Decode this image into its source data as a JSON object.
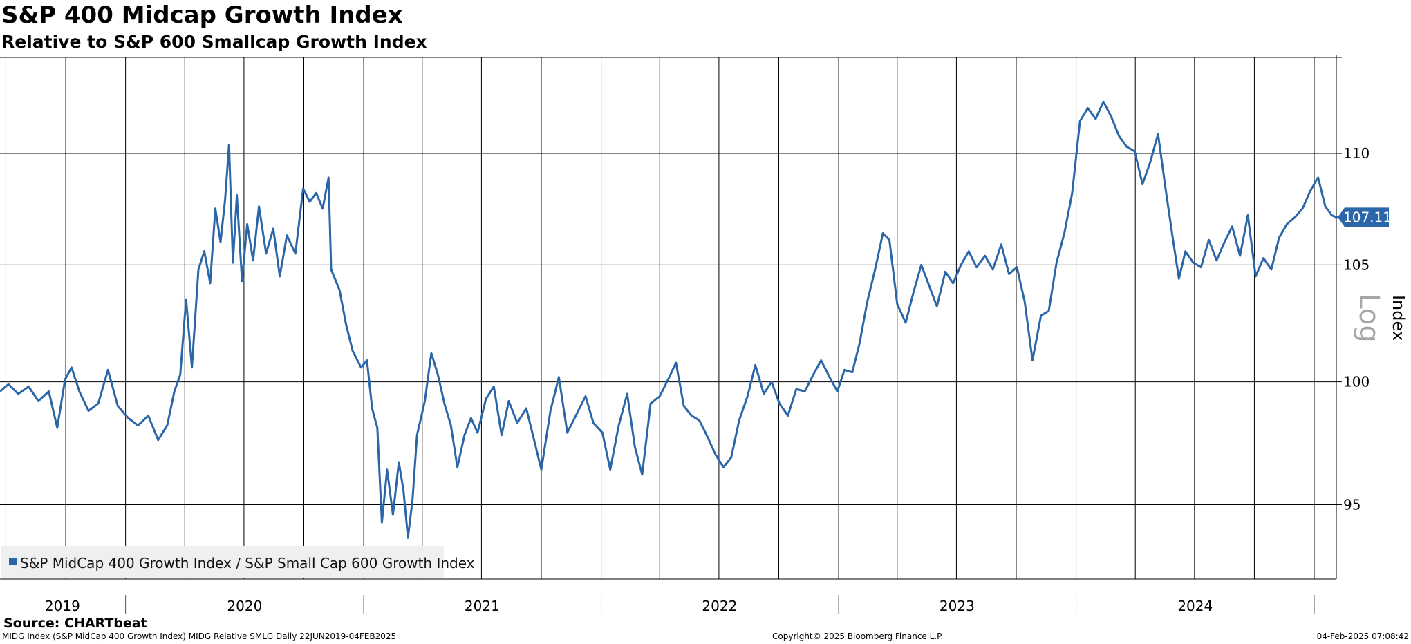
{
  "header": {
    "title": "S&P 400 Midcap Growth Index",
    "subtitle": "Relative to S&P 600 Smallcap Growth Index"
  },
  "footer": {
    "source": "Source: CHARTbeat",
    "left": "MIDG Index (S&P MidCap 400 Growth Index) MIDG Relative SMLG  Daily 22JUN2019-04FEB2025",
    "center": "Copyright© 2025 Bloomberg Finance L.P.",
    "right": "04-Feb-2025 07:08:42"
  },
  "colors": {
    "series": "#2a66a8",
    "grid": "#000000",
    "legend_bg": "#efefef",
    "scale_label": "#a6a6a6"
  },
  "chart_data": {
    "type": "line",
    "title": "S&P 400 Midcap Growth Index",
    "subtitle": "Relative to S&P 600 Smallcap Growth Index",
    "ylabel": "Index",
    "yscale": "log",
    "yscale_label": "Log",
    "y_ticks": [
      95,
      100,
      105,
      110
    ],
    "ylim": [
      92.1,
      114.5
    ],
    "xlim": [
      "2019-06-22",
      "2025-02-04"
    ],
    "x_labels": [
      "2019",
      "2020",
      "2021",
      "2022",
      "2023",
      "2024"
    ],
    "grid": true,
    "legend_position": "bottom-left",
    "last_value": 107.11,
    "last_value_label": "107.11",
    "series": [
      {
        "name": "S&P MidCap 400 Growth Index / S&P Small Cap 600 Growth Index",
        "color": "#2a66a8",
        "points": [
          [
            "2019-06-22",
            99.6
          ],
          [
            "2019-07-05",
            99.9
          ],
          [
            "2019-07-20",
            99.5
          ],
          [
            "2019-08-05",
            99.8
          ],
          [
            "2019-08-20",
            99.2
          ],
          [
            "2019-09-05",
            99.6
          ],
          [
            "2019-09-18",
            98.1
          ],
          [
            "2019-09-30",
            100.1
          ],
          [
            "2019-10-10",
            100.6
          ],
          [
            "2019-10-22",
            99.6
          ],
          [
            "2019-11-05",
            98.8
          ],
          [
            "2019-11-20",
            99.1
          ],
          [
            "2019-12-05",
            100.5
          ],
          [
            "2019-12-20",
            99.0
          ],
          [
            "2020-01-05",
            98.5
          ],
          [
            "2020-01-20",
            98.2
          ],
          [
            "2020-02-05",
            98.6
          ],
          [
            "2020-02-20",
            97.6
          ],
          [
            "2020-03-05",
            98.2
          ],
          [
            "2020-03-16",
            99.6
          ],
          [
            "2020-03-25",
            100.3
          ],
          [
            "2020-04-03",
            103.5
          ],
          [
            "2020-04-12",
            100.6
          ],
          [
            "2020-04-22",
            104.8
          ],
          [
            "2020-05-01",
            105.6
          ],
          [
            "2020-05-10",
            104.2
          ],
          [
            "2020-05-18",
            107.5
          ],
          [
            "2020-05-26",
            106.0
          ],
          [
            "2020-06-02",
            107.9
          ],
          [
            "2020-06-08",
            110.4
          ],
          [
            "2020-06-14",
            105.1
          ],
          [
            "2020-06-20",
            108.1
          ],
          [
            "2020-06-28",
            104.3
          ],
          [
            "2020-07-06",
            106.8
          ],
          [
            "2020-07-15",
            105.2
          ],
          [
            "2020-07-24",
            107.6
          ],
          [
            "2020-08-04",
            105.5
          ],
          [
            "2020-08-15",
            106.6
          ],
          [
            "2020-08-25",
            104.5
          ],
          [
            "2020-09-05",
            106.3
          ],
          [
            "2020-09-18",
            105.5
          ],
          [
            "2020-09-30",
            108.4
          ],
          [
            "2020-10-10",
            107.8
          ],
          [
            "2020-10-20",
            108.2
          ],
          [
            "2020-10-30",
            107.5
          ],
          [
            "2020-11-08",
            108.9
          ],
          [
            "2020-11-12",
            104.8
          ],
          [
            "2020-11-25",
            103.9
          ],
          [
            "2020-12-05",
            102.4
          ],
          [
            "2020-12-15",
            101.3
          ],
          [
            "2020-12-28",
            100.6
          ],
          [
            "2021-01-06",
            100.9
          ],
          [
            "2021-01-14",
            98.9
          ],
          [
            "2021-01-22",
            98.1
          ],
          [
            "2021-01-29",
            94.3
          ],
          [
            "2021-02-06",
            96.4
          ],
          [
            "2021-02-15",
            94.6
          ],
          [
            "2021-02-24",
            96.7
          ],
          [
            "2021-03-03",
            95.6
          ],
          [
            "2021-03-10",
            93.7
          ],
          [
            "2021-03-17",
            95.2
          ],
          [
            "2021-03-24",
            97.8
          ],
          [
            "2021-04-05",
            99.2
          ],
          [
            "2021-04-15",
            101.2
          ],
          [
            "2021-04-25",
            100.3
          ],
          [
            "2021-05-05",
            99.1
          ],
          [
            "2021-05-15",
            98.2
          ],
          [
            "2021-05-25",
            96.5
          ],
          [
            "2021-06-05",
            97.8
          ],
          [
            "2021-06-15",
            98.5
          ],
          [
            "2021-06-25",
            97.9
          ],
          [
            "2021-07-08",
            99.3
          ],
          [
            "2021-07-20",
            99.8
          ],
          [
            "2021-08-01",
            97.8
          ],
          [
            "2021-08-12",
            99.2
          ],
          [
            "2021-08-25",
            98.3
          ],
          [
            "2021-09-08",
            98.9
          ],
          [
            "2021-09-20",
            97.6
          ],
          [
            "2021-10-01",
            96.4
          ],
          [
            "2021-10-15",
            98.8
          ],
          [
            "2021-10-28",
            100.2
          ],
          [
            "2021-11-10",
            97.9
          ],
          [
            "2021-11-25",
            98.7
          ],
          [
            "2021-12-08",
            99.4
          ],
          [
            "2021-12-20",
            98.3
          ],
          [
            "2022-01-03",
            97.9
          ],
          [
            "2022-01-15",
            96.4
          ],
          [
            "2022-01-28",
            98.2
          ],
          [
            "2022-02-10",
            99.5
          ],
          [
            "2022-02-22",
            97.3
          ],
          [
            "2022-03-05",
            96.2
          ],
          [
            "2022-03-18",
            99.1
          ],
          [
            "2022-04-01",
            99.4
          ],
          [
            "2022-04-14",
            100.1
          ],
          [
            "2022-04-26",
            100.8
          ],
          [
            "2022-05-08",
            99.0
          ],
          [
            "2022-05-20",
            98.6
          ],
          [
            "2022-06-01",
            98.4
          ],
          [
            "2022-06-14",
            97.7
          ],
          [
            "2022-06-26",
            97.0
          ],
          [
            "2022-07-08",
            96.5
          ],
          [
            "2022-07-20",
            96.9
          ],
          [
            "2022-08-01",
            98.4
          ],
          [
            "2022-08-14",
            99.4
          ],
          [
            "2022-08-26",
            100.7
          ],
          [
            "2022-09-08",
            99.5
          ],
          [
            "2022-09-20",
            100.0
          ],
          [
            "2022-10-02",
            99.1
          ],
          [
            "2022-10-15",
            98.6
          ],
          [
            "2022-10-28",
            99.7
          ],
          [
            "2022-11-10",
            99.6
          ],
          [
            "2022-11-23",
            100.3
          ],
          [
            "2022-12-05",
            100.9
          ],
          [
            "2022-12-18",
            100.2
          ],
          [
            "2022-12-30",
            99.6
          ],
          [
            "2023-01-10",
            100.5
          ],
          [
            "2023-01-22",
            100.4
          ],
          [
            "2023-02-02",
            101.6
          ],
          [
            "2023-02-14",
            103.4
          ],
          [
            "2023-02-26",
            104.8
          ],
          [
            "2023-03-10",
            106.4
          ],
          [
            "2023-03-20",
            106.1
          ],
          [
            "2023-04-01",
            103.3
          ],
          [
            "2023-04-14",
            102.5
          ],
          [
            "2023-04-26",
            103.8
          ],
          [
            "2023-05-08",
            105.0
          ],
          [
            "2023-05-20",
            104.1
          ],
          [
            "2023-06-01",
            103.2
          ],
          [
            "2023-06-14",
            104.7
          ],
          [
            "2023-06-26",
            104.2
          ],
          [
            "2023-07-08",
            105.0
          ],
          [
            "2023-07-20",
            105.6
          ],
          [
            "2023-08-01",
            104.9
          ],
          [
            "2023-08-14",
            105.4
          ],
          [
            "2023-08-26",
            104.8
          ],
          [
            "2023-09-08",
            105.9
          ],
          [
            "2023-09-20",
            104.6
          ],
          [
            "2023-10-02",
            104.9
          ],
          [
            "2023-10-14",
            103.4
          ],
          [
            "2023-10-26",
            100.9
          ],
          [
            "2023-11-08",
            102.8
          ],
          [
            "2023-11-20",
            103.0
          ],
          [
            "2023-12-02",
            105.1
          ],
          [
            "2023-12-14",
            106.4
          ],
          [
            "2023-12-26",
            108.2
          ],
          [
            "2024-01-07",
            111.5
          ],
          [
            "2024-01-19",
            112.1
          ],
          [
            "2024-01-31",
            111.6
          ],
          [
            "2024-02-12",
            112.4
          ],
          [
            "2024-02-24",
            111.7
          ],
          [
            "2024-03-07",
            110.8
          ],
          [
            "2024-03-19",
            110.3
          ],
          [
            "2024-03-31",
            110.1
          ],
          [
            "2024-04-12",
            108.6
          ],
          [
            "2024-04-24",
            109.6
          ],
          [
            "2024-05-06",
            110.9
          ],
          [
            "2024-05-18",
            108.3
          ],
          [
            "2024-05-28",
            106.3
          ],
          [
            "2024-06-07",
            104.4
          ],
          [
            "2024-06-17",
            105.6
          ],
          [
            "2024-06-29",
            105.1
          ],
          [
            "2024-07-11",
            104.9
          ],
          [
            "2024-07-23",
            106.1
          ],
          [
            "2024-08-04",
            105.2
          ],
          [
            "2024-08-16",
            106.0
          ],
          [
            "2024-08-28",
            106.7
          ],
          [
            "2024-09-09",
            105.4
          ],
          [
            "2024-09-21",
            107.2
          ],
          [
            "2024-10-03",
            104.5
          ],
          [
            "2024-10-15",
            105.3
          ],
          [
            "2024-10-27",
            104.8
          ],
          [
            "2024-11-08",
            106.2
          ],
          [
            "2024-11-20",
            106.8
          ],
          [
            "2024-12-02",
            107.1
          ],
          [
            "2024-12-14",
            107.5
          ],
          [
            "2024-12-26",
            108.3
          ],
          [
            "2025-01-07",
            108.9
          ],
          [
            "2025-01-18",
            107.6
          ],
          [
            "2025-01-28",
            107.2
          ],
          [
            "2025-02-04",
            107.11
          ]
        ]
      }
    ]
  }
}
